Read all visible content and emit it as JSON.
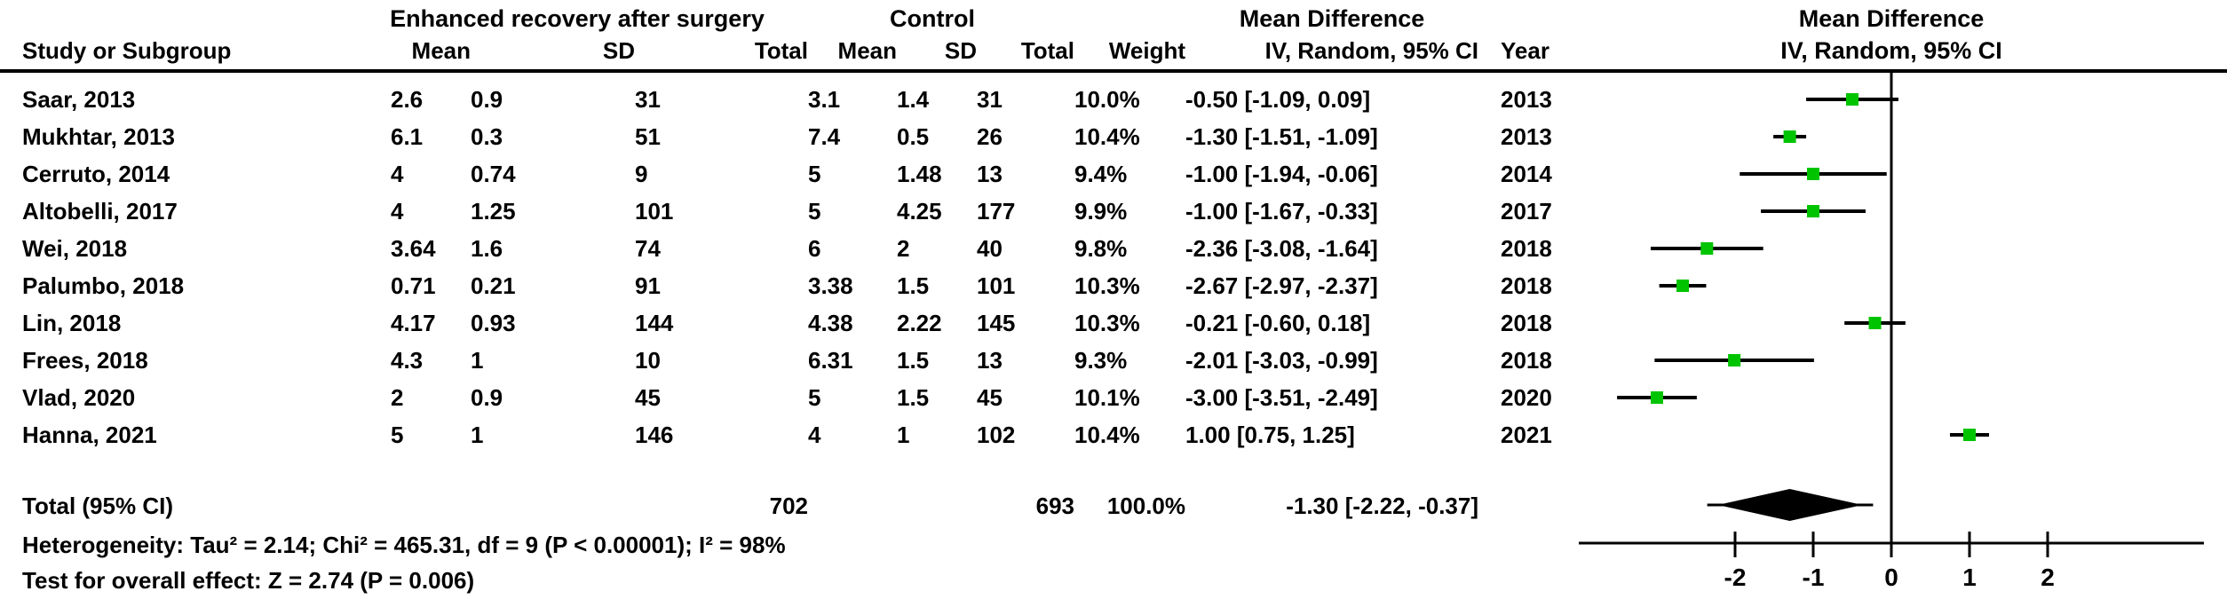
{
  "figure": {
    "headers": {
      "group_experimental": "Enhanced recovery after surgery",
      "group_control": "Control",
      "md_left": "Mean Difference",
      "md_right": "Mean Difference",
      "sub_left": "IV, Random, 95% CI",
      "sub_right": "IV, Random, 95% CI",
      "study": "Study or Subgroup",
      "e_mean": "Mean",
      "e_sd": "SD",
      "e_total": "Total",
      "c_mean": "Mean",
      "c_sd": "SD",
      "c_total": "Total",
      "weight": "Weight",
      "year": "Year"
    },
    "rows": [
      {
        "study": "Saar, 2013",
        "e_mean": "2.6",
        "e_sd": "0.9",
        "e_total": "31",
        "c_mean": "3.1",
        "c_sd": "1.4",
        "c_total": "31",
        "weight": "10.0%",
        "ci_text": "-0.50 [-1.09, 0.09]",
        "year": "2013"
      },
      {
        "study": "Mukhtar, 2013",
        "e_mean": "6.1",
        "e_sd": "0.3",
        "e_total": "51",
        "c_mean": "7.4",
        "c_sd": "0.5",
        "c_total": "26",
        "weight": "10.4%",
        "ci_text": "-1.30 [-1.51, -1.09]",
        "year": "2013"
      },
      {
        "study": "Cerruto, 2014",
        "e_mean": "4",
        "e_sd": "0.74",
        "e_total": "9",
        "c_mean": "5",
        "c_sd": "1.48",
        "c_total": "13",
        "weight": "9.4%",
        "ci_text": "-1.00 [-1.94, -0.06]",
        "year": "2014"
      },
      {
        "study": "Altobelli, 2017",
        "e_mean": "4",
        "e_sd": "1.25",
        "e_total": "101",
        "c_mean": "5",
        "c_sd": "4.25",
        "c_total": "177",
        "weight": "9.9%",
        "ci_text": "-1.00 [-1.67, -0.33]",
        "year": "2017"
      },
      {
        "study": "Wei, 2018",
        "e_mean": "3.64",
        "e_sd": "1.6",
        "e_total": "74",
        "c_mean": "6",
        "c_sd": "2",
        "c_total": "40",
        "weight": "9.8%",
        "ci_text": "-2.36 [-3.08, -1.64]",
        "year": "2018"
      },
      {
        "study": "Palumbo, 2018",
        "e_mean": "0.71",
        "e_sd": "0.21",
        "e_total": "91",
        "c_mean": "3.38",
        "c_sd": "1.5",
        "c_total": "101",
        "weight": "10.3%",
        "ci_text": "-2.67 [-2.97, -2.37]",
        "year": "2018"
      },
      {
        "study": "Lin, 2018",
        "e_mean": "4.17",
        "e_sd": "0.93",
        "e_total": "144",
        "c_mean": "4.38",
        "c_sd": "2.22",
        "c_total": "145",
        "weight": "10.3%",
        "ci_text": "-0.21 [-0.60, 0.18]",
        "year": "2018"
      },
      {
        "study": "Frees, 2018",
        "e_mean": "4.3",
        "e_sd": "1",
        "e_total": "10",
        "c_mean": "6.31",
        "c_sd": "1.5",
        "c_total": "13",
        "weight": "9.3%",
        "ci_text": "-2.01 [-3.03, -0.99]",
        "year": "2018"
      },
      {
        "study": "Vlad, 2020",
        "e_mean": "2",
        "e_sd": "0.9",
        "e_total": "45",
        "c_mean": "5",
        "c_sd": "1.5",
        "c_total": "45",
        "weight": "10.1%",
        "ci_text": "-3.00 [-3.51, -2.49]",
        "year": "2020"
      },
      {
        "study": "Hanna, 2021",
        "e_mean": "5",
        "e_sd": "1",
        "e_total": "146",
        "c_mean": "4",
        "c_sd": "1",
        "c_total": "102",
        "weight": "10.4%",
        "ci_text": "1.00 [0.75, 1.25]",
        "year": "2021"
      }
    ],
    "total": {
      "label": "Total (95% CI)",
      "e_total": "702",
      "c_total": "693",
      "weight": "100.0%",
      "ci_text": "-1.30 [-2.22, -0.37]"
    },
    "footer": {
      "heterogeneity": "Heterogeneity: Tau² = 2.14; Chi² = 465.31, df = 9 (P < 0.00001); I² = 98%",
      "overall_effect": "Test for overall effect: Z = 2.74 (P = 0.006)"
    },
    "colors": {
      "marker_green": "#00C400",
      "line_black": "#000000",
      "diamond_black": "#000000"
    }
  },
  "chart_data": {
    "type": "scatter",
    "subtype": "forest-plot",
    "title": "Mean Difference",
    "subtitle": "IV, Random, 95% CI",
    "x_axis": {
      "min": -4,
      "max": 4,
      "ticks": [
        -2,
        -1,
        0,
        1,
        2
      ],
      "zero_line": true,
      "grid": false
    },
    "studies": [
      {
        "name": "Saar, 2013",
        "md": -0.5,
        "ci_low": -1.09,
        "ci_high": 0.09,
        "weight_pct": 10.0,
        "year": 2013
      },
      {
        "name": "Mukhtar, 2013",
        "md": -1.3,
        "ci_low": -1.51,
        "ci_high": -1.09,
        "weight_pct": 10.4,
        "year": 2013
      },
      {
        "name": "Cerruto, 2014",
        "md": -1.0,
        "ci_low": -1.94,
        "ci_high": -0.06,
        "weight_pct": 9.4,
        "year": 2014
      },
      {
        "name": "Altobelli, 2017",
        "md": -1.0,
        "ci_low": -1.67,
        "ci_high": -0.33,
        "weight_pct": 9.9,
        "year": 2017
      },
      {
        "name": "Wei, 2018",
        "md": -2.36,
        "ci_low": -3.08,
        "ci_high": -1.64,
        "weight_pct": 9.8,
        "year": 2018
      },
      {
        "name": "Palumbo, 2018",
        "md": -2.67,
        "ci_low": -2.97,
        "ci_high": -2.37,
        "weight_pct": 10.3,
        "year": 2018
      },
      {
        "name": "Lin, 2018",
        "md": -0.21,
        "ci_low": -0.6,
        "ci_high": 0.18,
        "weight_pct": 10.3,
        "year": 2018
      },
      {
        "name": "Frees, 2018",
        "md": -2.01,
        "ci_low": -3.03,
        "ci_high": -0.99,
        "weight_pct": 9.3,
        "year": 2018
      },
      {
        "name": "Vlad, 2020",
        "md": -3.0,
        "ci_low": -3.51,
        "ci_high": -2.49,
        "weight_pct": 10.1,
        "year": 2020
      },
      {
        "name": "Hanna, 2021",
        "md": 1.0,
        "ci_low": 0.75,
        "ci_high": 1.25,
        "weight_pct": 10.4,
        "year": 2021
      }
    ],
    "pooled": {
      "md": -1.3,
      "ci_low": -2.22,
      "ci_high": -0.37,
      "total_e": 702,
      "total_c": 693
    },
    "heterogeneity": {
      "tau2": 2.14,
      "chi2": 465.31,
      "df": 9,
      "p": "< 0.00001",
      "i2_pct": 98
    },
    "overall_effect": {
      "z": 2.74,
      "p": 0.006
    }
  }
}
